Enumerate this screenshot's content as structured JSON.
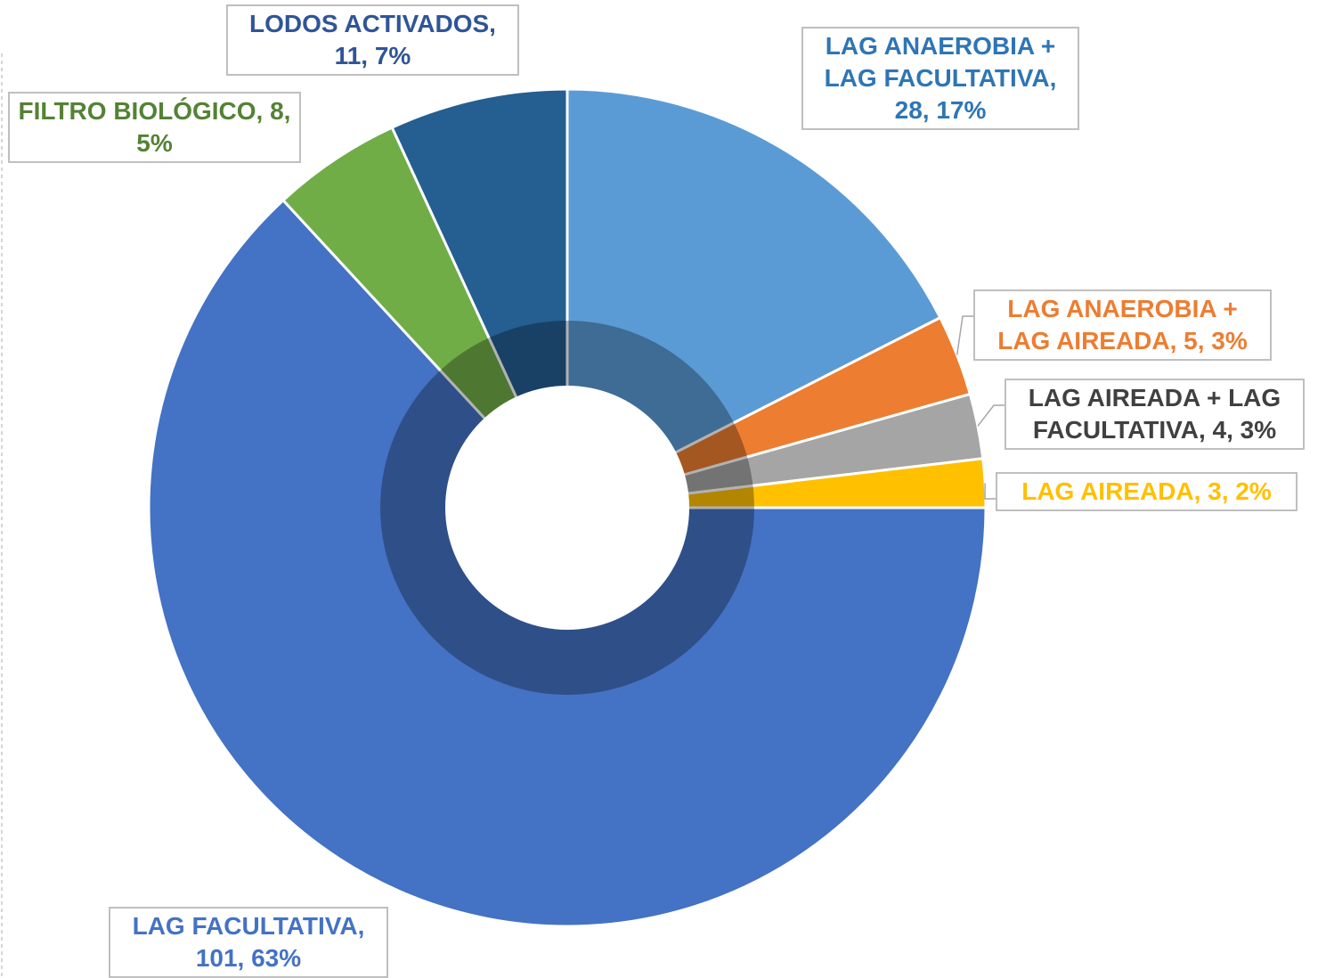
{
  "chart_data": {
    "type": "pie",
    "categories": [
      "LAG ANAEROBIA + LAG FACULTATIVA",
      "LAG ANAEROBIA + LAG AIREADA",
      "LAG AIREADA + LAG FACULTATIVA",
      "LAG AIREADA",
      "LAG FACULTATIVA",
      "FILTRO BIOLÓGICO",
      "LODOS ACTIVADOS"
    ],
    "values": [
      28,
      5,
      4,
      3,
      101,
      8,
      11
    ],
    "value_labels": [
      "LAG ANAEROBIA + LAG FACULTATIVA, 28, 17%",
      "LAG ANAEROBIA + LAG AIREADA, 5, 3%",
      "LAG AIREADA + LAG FACULTATIVA, 4, 3%",
      "LAG AIREADA, 3, 2%",
      "LAG FACULTATIVA, 101, 63%",
      "FILTRO BIOLÓGICO, 8, 5%",
      "LODOS ACTIVADOS, 11, 7%"
    ],
    "colors": [
      "#5b9bd5",
      "#ed7d31",
      "#a5a5a5",
      "#ffc000",
      "#4472c4",
      "#70ad47",
      "#255e91"
    ],
    "label_colors": [
      "#2e75b6",
      "#ed7d31",
      "#404040",
      "#ffc000",
      "#4472c4",
      "#548235",
      "#2f5597"
    ]
  }
}
